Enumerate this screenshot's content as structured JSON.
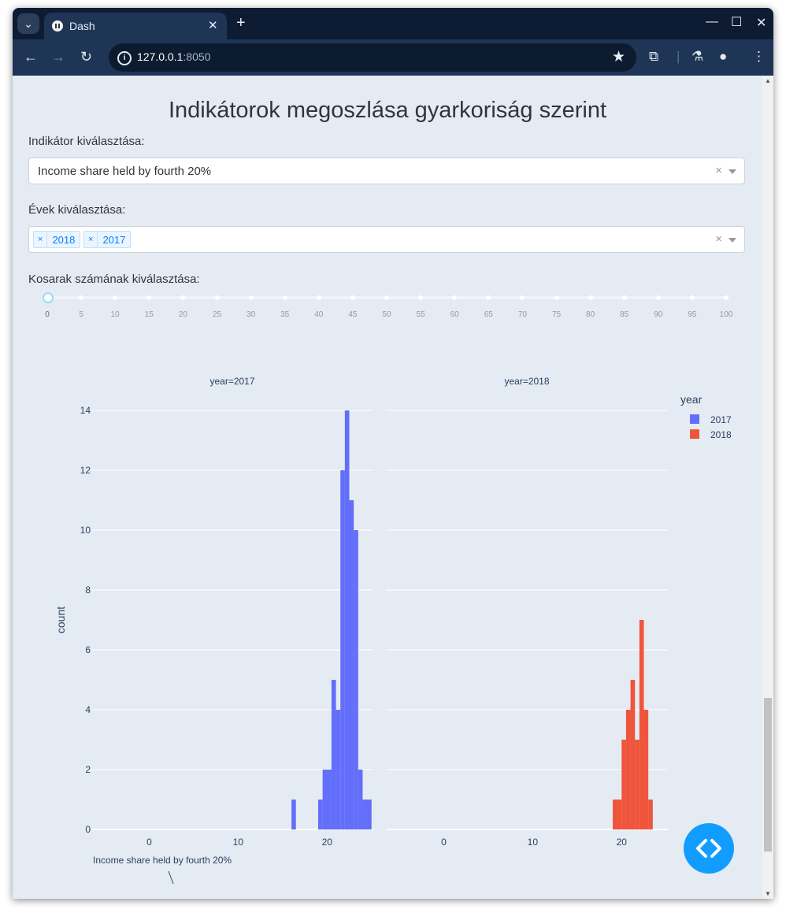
{
  "browser": {
    "tab_title": "Dash",
    "new_tab": "+",
    "url_host": "127.0.0.1",
    "url_port": ":8050",
    "icons": [
      "tab-search-icon",
      "dash-favicon-icon",
      "close-icon",
      "back-icon",
      "forward-icon",
      "reload-icon",
      "info-icon",
      "star-icon",
      "extensions-icon",
      "labs-icon",
      "profile-icon",
      "menu-icon",
      "minimize-icon",
      "maximize-icon",
      "close-window-icon"
    ]
  },
  "page": {
    "title": "Indikátorok megoszlása gyarkoriság szerint",
    "indicator_label": "Indikátor kiválasztása:",
    "indicator_value": "Income share held by fourth 20%",
    "years_label": "Évek kiválasztása:",
    "years_selected": [
      "2018",
      "2017"
    ],
    "clear_symbol": "×",
    "bins_label": "Kosarak számának kiválasztása:",
    "slider_value": 0,
    "slider_marks": [
      "0",
      "5",
      "10",
      "15",
      "20",
      "25",
      "30",
      "35",
      "40",
      "45",
      "50",
      "55",
      "60",
      "65",
      "70",
      "75",
      "80",
      "85",
      "90",
      "95",
      "100"
    ]
  },
  "chart_data": {
    "type": "bar",
    "subtype": "histogram",
    "facets": [
      {
        "title": "year=2017",
        "series": "2017"
      },
      {
        "title": "year=2018",
        "series": "2018"
      }
    ],
    "xlabel": "Income share held by fourth 20%",
    "ylabel": "count",
    "xlim": [
      -6.5,
      25.2
    ],
    "ylim": [
      0,
      14
    ],
    "x_ticks": [
      0,
      10,
      20
    ],
    "y_ticks": [
      0,
      2,
      4,
      6,
      8,
      10,
      12,
      14
    ],
    "legend": {
      "title": "year",
      "position": "top-right"
    },
    "series": [
      {
        "name": "2017",
        "color": "#636efa",
        "bins": [
          {
            "x0": 16.0,
            "x1": 16.5,
            "count": 1
          },
          {
            "x0": 19.0,
            "x1": 19.5,
            "count": 1
          },
          {
            "x0": 19.5,
            "x1": 20.5,
            "count": 2
          },
          {
            "x0": 20.5,
            "x1": 21.0,
            "count": 5
          },
          {
            "x0": 21.0,
            "x1": 21.5,
            "count": 4
          },
          {
            "x0": 21.5,
            "x1": 22.0,
            "count": 12
          },
          {
            "x0": 22.0,
            "x1": 22.5,
            "count": 14
          },
          {
            "x0": 22.5,
            "x1": 23.0,
            "count": 11
          },
          {
            "x0": 23.0,
            "x1": 23.5,
            "count": 10
          },
          {
            "x0": 23.5,
            "x1": 24.0,
            "count": 2
          },
          {
            "x0": 24.0,
            "x1": 25.0,
            "count": 1
          }
        ]
      },
      {
        "name": "2018",
        "color": "#ef553b",
        "bins": [
          {
            "x0": 19.0,
            "x1": 20.0,
            "count": 1
          },
          {
            "x0": 20.0,
            "x1": 20.5,
            "count": 3
          },
          {
            "x0": 20.5,
            "x1": 21.0,
            "count": 4
          },
          {
            "x0": 21.0,
            "x1": 21.5,
            "count": 5
          },
          {
            "x0": 21.5,
            "x1": 22.0,
            "count": 3
          },
          {
            "x0": 22.0,
            "x1": 22.5,
            "count": 7
          },
          {
            "x0": 22.5,
            "x1": 23.0,
            "count": 4
          },
          {
            "x0": 23.0,
            "x1": 23.5,
            "count": 1
          }
        ]
      }
    ]
  }
}
